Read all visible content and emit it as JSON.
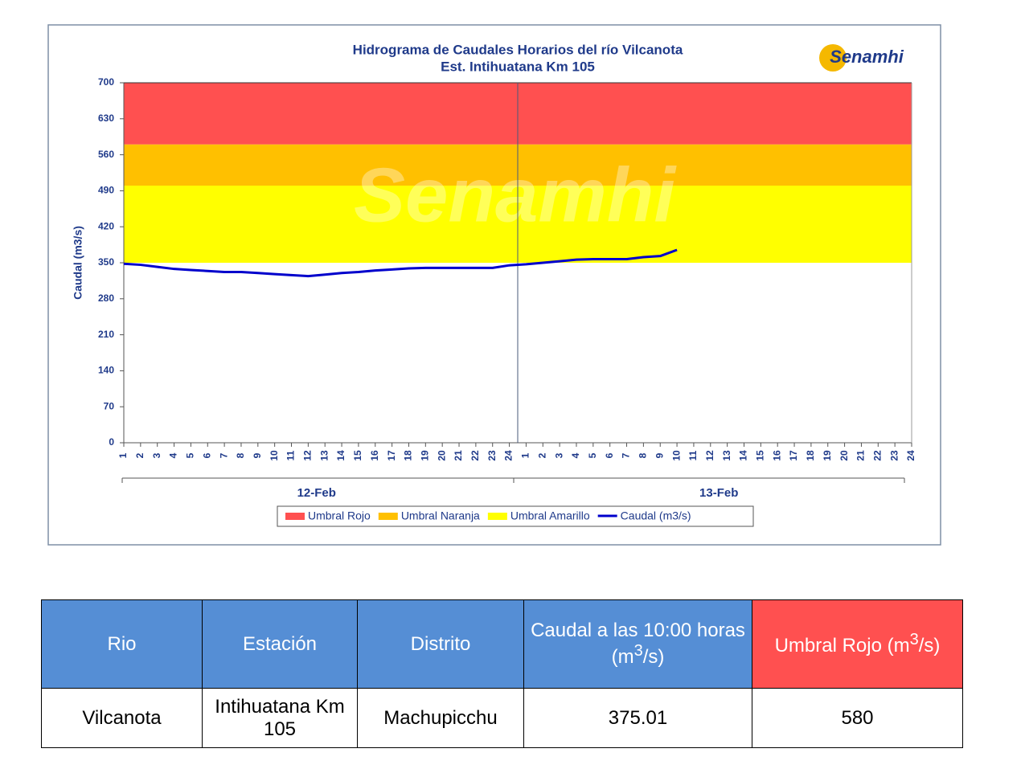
{
  "chart_data": {
    "type": "line",
    "title": "Hidrograma de Caudales Horarios del río Vilcanota",
    "subtitle": "Est. Intihuatana Km 105",
    "logo": "Senamhi",
    "y_label": "Caudal  (m3/s)",
    "categories": [
      "1",
      "2",
      "3",
      "4",
      "5",
      "6",
      "7",
      "8",
      "9",
      "10",
      "11",
      "12",
      "13",
      "14",
      "15",
      "16",
      "17",
      "18",
      "19",
      "20",
      "21",
      "22",
      "23",
      "24",
      "1",
      "2",
      "3",
      "4",
      "5",
      "6",
      "7",
      "8",
      "9",
      "10",
      "11",
      "12",
      "13",
      "14",
      "15",
      "16",
      "17",
      "18",
      "19",
      "20",
      "21",
      "22",
      "23",
      "24"
    ],
    "x_groups": [
      "12-Feb",
      "13-Feb"
    ],
    "bands": [
      {
        "name": "Umbral Rojo",
        "color": "#ff5050",
        "from": 580,
        "to": 700
      },
      {
        "name": "Umbral Naranja",
        "color": "#ffc000",
        "from": 500,
        "to": 580
      },
      {
        "name": "Umbral Amarillo",
        "color": "#ffff00",
        "from": 350,
        "to": 500
      }
    ],
    "series": [
      {
        "name": "Caudal (m3/s)",
        "color": "#0000cc",
        "values": [
          348,
          346,
          342,
          338,
          336,
          334,
          332,
          332,
          330,
          328,
          326,
          324,
          327,
          330,
          332,
          335,
          337,
          339,
          340,
          340,
          340,
          340,
          340,
          345,
          347,
          350,
          353,
          356,
          357,
          357,
          357,
          361,
          363,
          375,
          null,
          null,
          null,
          null,
          null,
          null,
          null,
          null,
          null,
          null,
          null,
          null,
          null,
          null
        ]
      }
    ],
    "ylim": [
      0,
      700
    ],
    "yticks": [
      0,
      70,
      140,
      210,
      280,
      350,
      420,
      490,
      560,
      630,
      700
    ],
    "grid": false
  },
  "table": {
    "header": [
      "Rio",
      "Estación",
      "Distrito",
      {
        "text": "Caudal a las 10:00 horas (m",
        "sup": "3",
        "after": "/s)"
      },
      {
        "text": "Umbral Rojo (m",
        "sup": "3",
        "after": "/s)"
      }
    ],
    "rows": [
      [
        "Vilcanota",
        "Intihuatana Km 105",
        "Machupicchu",
        "375.01",
        "580"
      ]
    ]
  }
}
